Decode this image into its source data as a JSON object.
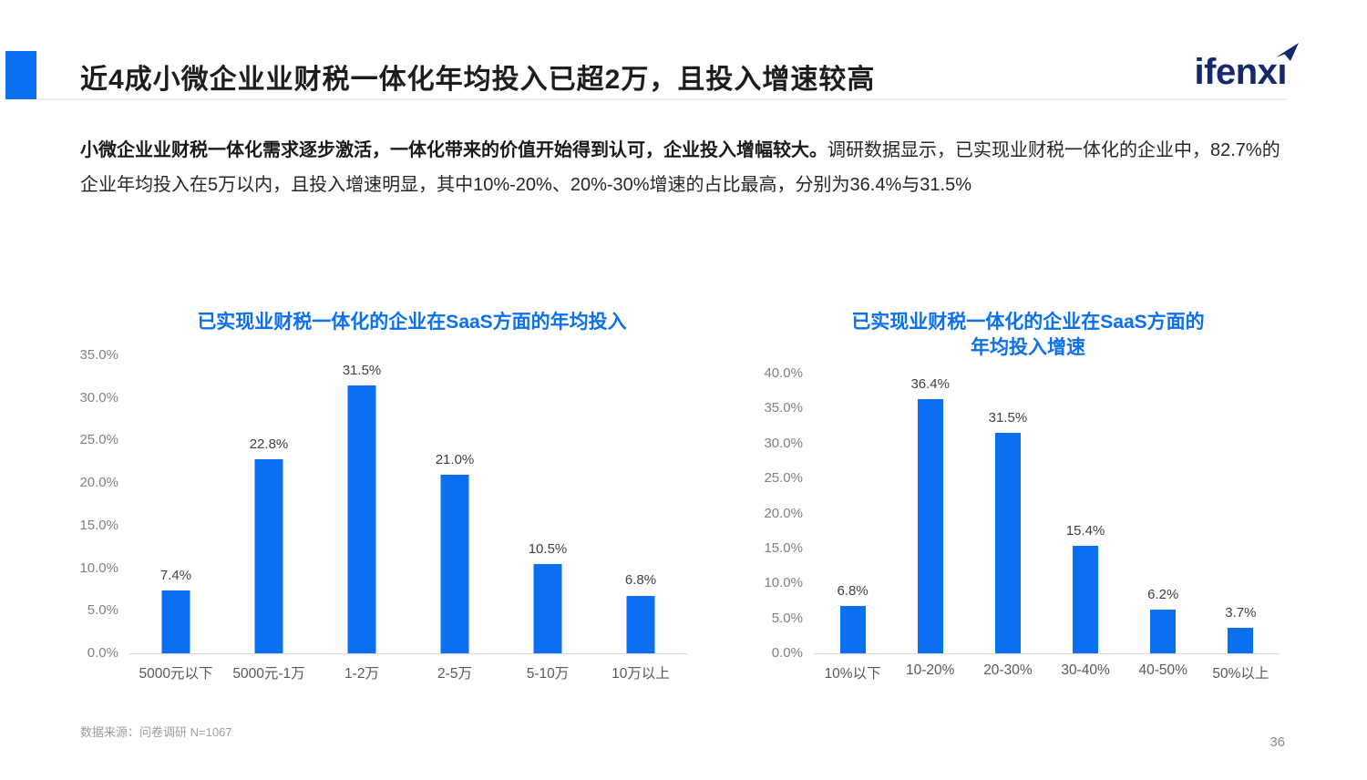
{
  "header": {
    "title": "近4成小微企业业财税一体化年均投入已超2万，且投入增速较高",
    "logo_text": "ifenx",
    "logo_i": "ı",
    "accent_color": "#0b6ff2",
    "logo_color": "#16296f"
  },
  "body": {
    "lead_bold": "小微企业业财税一体化需求逐步激活，一体化带来的价值开始得到认可，企业投入增幅较大。",
    "lead_rest": "调研数据显示，已实现业财税一体化的企业中，82.7%的企业年均投入在5万以内，且投入增速明显，其中10%-20%、20%-30%增速的占比最高，分别为36.4%与31.5%"
  },
  "chart_data": [
    {
      "type": "bar",
      "title_lines": [
        "已实现业财税一体化的企业在SaaS方面的年均投入"
      ],
      "categories": [
        "5000元以下",
        "5000元-1万",
        "1-2万",
        "2-5万",
        "5-10万",
        "10万以上"
      ],
      "values": [
        7.4,
        22.8,
        31.5,
        21.0,
        10.5,
        6.8
      ],
      "labels": [
        "7.4%",
        "22.8%",
        "31.5%",
        "21.0%",
        "10.5%",
        "6.8%"
      ],
      "ylabel": "",
      "xlabel": "",
      "ylim": [
        0,
        35
      ],
      "ytick_step": 5,
      "ytick_format": "percent_one_decimal",
      "bar_color": "#0b6ff2",
      "grid": false,
      "legend": "none"
    },
    {
      "type": "bar",
      "title_lines": [
        "已实现业财税一体化的企业在SaaS方面的",
        "年均投入增速"
      ],
      "categories": [
        "10%以下",
        "10-20%",
        "20-30%",
        "30-40%",
        "40-50%",
        "50%以上"
      ],
      "values": [
        6.8,
        36.4,
        31.5,
        15.4,
        6.2,
        3.7
      ],
      "labels": [
        "6.8%",
        "36.4%",
        "31.5%",
        "15.4%",
        "6.2%",
        "3.7%"
      ],
      "ylabel": "",
      "xlabel": "",
      "ylim": [
        0,
        40
      ],
      "ytick_step": 5,
      "ytick_format": "percent_one_decimal",
      "bar_color": "#0b6ff2",
      "grid": false,
      "legend": "none"
    }
  ],
  "footer": {
    "source": "数据来源：问卷调研 N=1067",
    "page_number": "36"
  }
}
